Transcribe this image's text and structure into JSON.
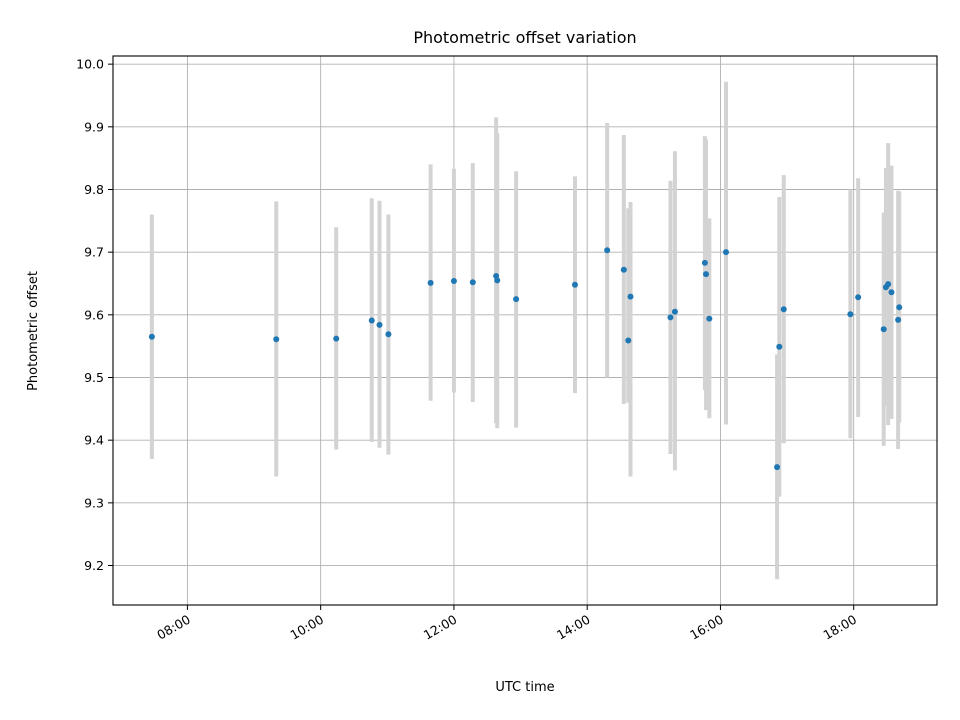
{
  "chart_data": {
    "type": "scatter",
    "title": "Photometric offset variation",
    "xlabel": "UTC time",
    "ylabel": "Photometric offset",
    "x_axis": {
      "kind": "time",
      "range": [
        "06:53",
        "19:15"
      ],
      "ticks": [
        "08:00",
        "10:00",
        "12:00",
        "14:00",
        "16:00",
        "18:00"
      ]
    },
    "y_axis": {
      "range": [
        9.137,
        10.013
      ],
      "ticks": [
        "9.2",
        "9.3",
        "9.4",
        "9.5",
        "9.6",
        "9.7",
        "9.8",
        "9.9",
        "10.0"
      ]
    },
    "grid": true,
    "marker_color": "#1f77b4",
    "errorbar_color": "#d3d3d3",
    "points": [
      {
        "x": "07:28",
        "y": 9.565,
        "low": 9.37,
        "high": 9.76
      },
      {
        "x": "09:20",
        "y": 9.561,
        "low": 9.342,
        "high": 9.781
      },
      {
        "x": "10:14",
        "y": 9.562,
        "low": 9.385,
        "high": 9.74
      },
      {
        "x": "10:46",
        "y": 9.591,
        "low": 9.397,
        "high": 9.786
      },
      {
        "x": "10:53",
        "y": 9.584,
        "low": 9.388,
        "high": 9.782
      },
      {
        "x": "11:01",
        "y": 9.569,
        "low": 9.377,
        "high": 9.76
      },
      {
        "x": "11:39",
        "y": 9.651,
        "low": 9.463,
        "high": 9.84
      },
      {
        "x": "12:00",
        "y": 9.654,
        "low": 9.476,
        "high": 9.833
      },
      {
        "x": "12:17",
        "y": 9.652,
        "low": 9.461,
        "high": 9.842
      },
      {
        "x": "12:38",
        "y": 9.662,
        "low": 9.427,
        "high": 9.915
      },
      {
        "x": "12:39",
        "y": 9.655,
        "low": 9.419,
        "high": 9.89
      },
      {
        "x": "12:56",
        "y": 9.625,
        "low": 9.42,
        "high": 9.829
      },
      {
        "x": "13:49",
        "y": 9.648,
        "low": 9.475,
        "high": 9.821
      },
      {
        "x": "14:18",
        "y": 9.703,
        "low": 9.5,
        "high": 9.906
      },
      {
        "x": "14:33",
        "y": 9.672,
        "low": 9.458,
        "high": 9.887
      },
      {
        "x": "14:37",
        "y": 9.559,
        "low": 9.46,
        "high": 9.77
      },
      {
        "x": "14:39",
        "y": 9.629,
        "low": 9.342,
        "high": 9.78
      },
      {
        "x": "15:15",
        "y": 9.596,
        "low": 9.378,
        "high": 9.814
      },
      {
        "x": "15:19",
        "y": 9.605,
        "low": 9.352,
        "high": 9.861
      },
      {
        "x": "15:46",
        "y": 9.683,
        "low": 9.48,
        "high": 9.885
      },
      {
        "x": "15:47",
        "y": 9.665,
        "low": 9.448,
        "high": 9.88
      },
      {
        "x": "15:50",
        "y": 9.594,
        "low": 9.435,
        "high": 9.754
      },
      {
        "x": "16:05",
        "y": 9.7,
        "low": 9.425,
        "high": 9.972
      },
      {
        "x": "16:51",
        "y": 9.357,
        "low": 9.178,
        "high": 9.537
      },
      {
        "x": "16:53",
        "y": 9.549,
        "low": 9.31,
        "high": 9.788
      },
      {
        "x": "16:57",
        "y": 9.609,
        "low": 9.395,
        "high": 9.823
      },
      {
        "x": "17:57",
        "y": 9.601,
        "low": 9.403,
        "high": 9.8
      },
      {
        "x": "18:04",
        "y": 9.628,
        "low": 9.437,
        "high": 9.818
      },
      {
        "x": "18:27",
        "y": 9.577,
        "low": 9.391,
        "high": 9.763
      },
      {
        "x": "18:29",
        "y": 9.644,
        "low": 9.455,
        "high": 9.834
      },
      {
        "x": "18:31",
        "y": 9.649,
        "low": 9.424,
        "high": 9.874
      },
      {
        "x": "18:34",
        "y": 9.636,
        "low": 9.434,
        "high": 9.838
      },
      {
        "x": "18:40",
        "y": 9.592,
        "low": 9.386,
        "high": 9.798
      },
      {
        "x": "18:41",
        "y": 9.612,
        "low": 9.428,
        "high": 9.797
      }
    ]
  }
}
